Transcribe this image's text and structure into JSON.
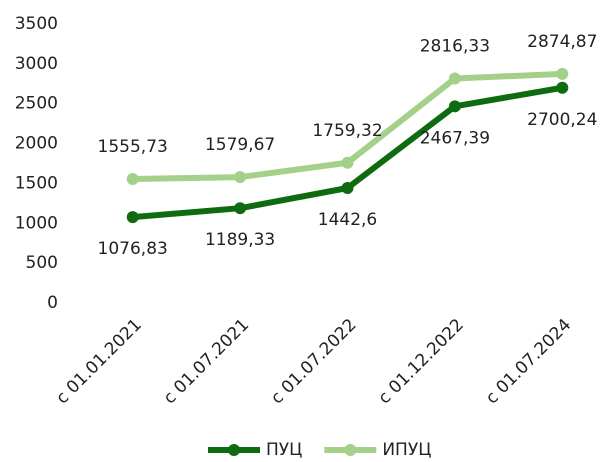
{
  "chart_data": {
    "type": "line",
    "categories": [
      "с 01.01.2021",
      "с 01.07.2021",
      "с 01.07.2022",
      "с 01.12.2022",
      "с 01.07.2024"
    ],
    "series": [
      {
        "name": "ПУЦ",
        "color": "#0f6b0f",
        "values": [
          1076.83,
          1189.33,
          1442.6,
          2467.39,
          2700.24
        ],
        "value_labels": [
          "1076,83",
          "1189,33",
          "1442,6",
          "2467,39",
          "2700,24"
        ]
      },
      {
        "name": "ИПУЦ",
        "color": "#a3d18a",
        "values": [
          1555.73,
          1579.67,
          1759.32,
          2816.33,
          2874.87
        ],
        "value_labels": [
          "1555,73",
          "1579,67",
          "1759,32",
          "2816,33",
          "2874,87"
        ]
      }
    ],
    "ylim": [
      0,
      3500
    ],
    "yticks": [
      0,
      500,
      1000,
      1500,
      2000,
      2500,
      3000,
      3500
    ],
    "grid": false,
    "legend": "bottom"
  }
}
